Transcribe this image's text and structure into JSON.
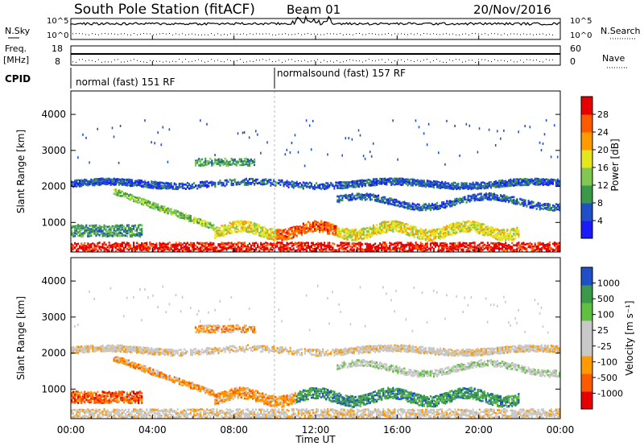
{
  "header": {
    "station": "South Pole Station (fitACF)",
    "beam": "Beam 01",
    "date": "20/Nov/2016"
  },
  "panels": {
    "nsky_label": "N.Sky",
    "nsky_ticks": [
      "10^5",
      "10^0"
    ],
    "nsearch_label": "N.Search",
    "freq_label": "Freq.",
    "freq_unit": "[MHz]",
    "freq_ticks": [
      "18",
      "8"
    ],
    "nave_label": "Nave",
    "nave_ticks": [
      "60",
      "0"
    ],
    "cpid_label": "CPID",
    "cpid_segments": [
      "normal (fast) 151 RF",
      "normalsound (fast) 157 RF"
    ]
  },
  "colors": {
    "power": [
      "#1a1aff",
      "#2050c8",
      "#3a9a4a",
      "#80c850",
      "#e6e61e",
      "#ff9a00",
      "#ff5a00",
      "#e60000"
    ],
    "velocity": [
      "#e60000",
      "#ff5a00",
      "#ff9a00",
      "#c8c8c8",
      "#c8c8c8",
      "#60c040",
      "#3a9a4a",
      "#2050c8"
    ]
  },
  "chart_data": [
    {
      "type": "heatmap",
      "title": "Power",
      "ylabel": "Slant Range [km]",
      "xlabel": "Time UT",
      "ylim": [
        180,
        4650
      ],
      "y_ticks": [
        "1000",
        "2000",
        "3000",
        "4000"
      ],
      "x_ticks": [
        "00:00",
        "04:00",
        "08:00",
        "12:00",
        "16:00",
        "20:00",
        "00:00"
      ],
      "colorbar": {
        "label": "Power [dB]",
        "ticks": [
          "4",
          "8",
          "12",
          "16",
          "20",
          "24",
          "28"
        ],
        "range": [
          0,
          30
        ]
      }
    },
    {
      "type": "heatmap",
      "title": "Velocity",
      "ylabel": "Slant Range [km]",
      "xlabel": "Time UT",
      "ylim": [
        180,
        4650
      ],
      "y_ticks": [
        "1000",
        "2000",
        "3000",
        "4000"
      ],
      "x_ticks": [
        "00:00",
        "04:00",
        "08:00",
        "12:00",
        "16:00",
        "20:00",
        "00:00"
      ],
      "colorbar": {
        "label": "Velocity [m s⁻¹]",
        "ticks": [
          "1000",
          "500",
          "100",
          "25",
          "-25",
          "-100",
          "-500",
          "-1000"
        ],
        "range": [
          -1000,
          1000
        ]
      }
    }
  ]
}
